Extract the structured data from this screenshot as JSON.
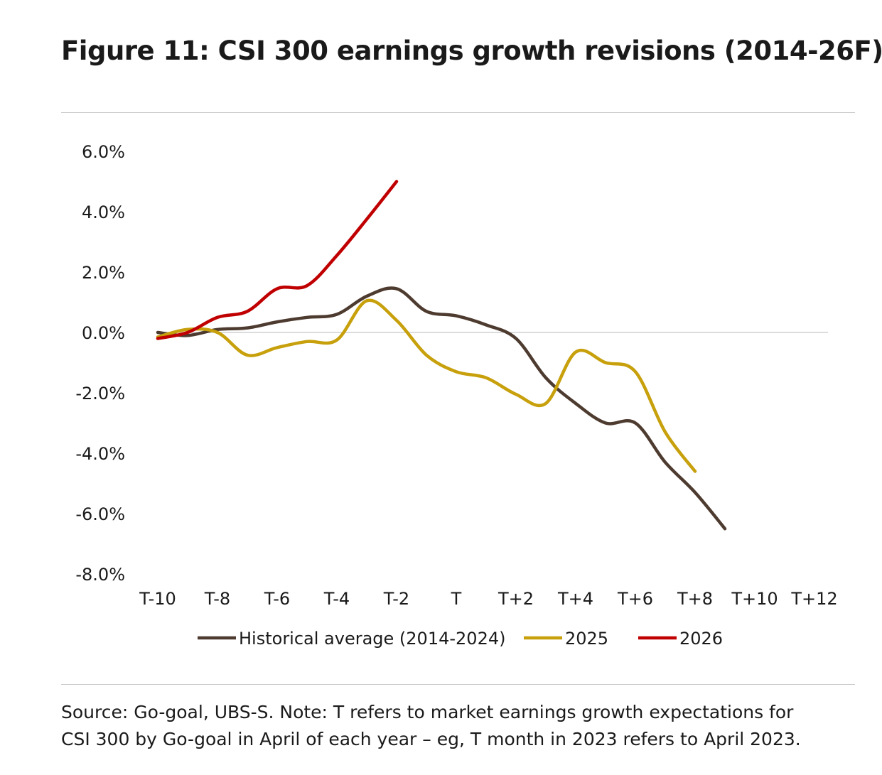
{
  "page": {
    "title": "Figure 11: CSI 300 earnings growth revisions (2014-26F)",
    "source_line1": "Source: Go-goal, UBS-S. Note: T refers to market earnings growth expectations for",
    "source_line2": "CSI 300 by Go-goal in April of each year – eg, T month in 2023 refers to April 2023."
  },
  "chart_data": {
    "type": "line",
    "title": "Figure 11: CSI 300 earnings growth revisions (2014-26F)",
    "xlabel": "",
    "ylabel": "",
    "x": [
      -10,
      -9,
      -8,
      -7,
      -6,
      -5,
      -4,
      -3,
      -2,
      -1,
      0,
      1,
      2,
      3,
      4,
      5,
      6,
      7,
      8,
      9,
      10,
      11,
      12
    ],
    "x_tick_labels": [
      "T-10",
      "T-8",
      "T-6",
      "T-4",
      "T-2",
      "T",
      "T+2",
      "T+4",
      "T+6",
      "T+8",
      "T+10",
      "T+12"
    ],
    "x_tick_values": [
      -10,
      -8,
      -6,
      -4,
      -2,
      0,
      2,
      4,
      6,
      8,
      10,
      12
    ],
    "ylim": [
      -8,
      6
    ],
    "y_ticks": [
      6,
      4,
      2,
      0,
      -2,
      -4,
      -6,
      -8
    ],
    "y_tick_labels": [
      "6.0%",
      "4.0%",
      "2.0%",
      "0.0%",
      "-2.0%",
      "-4.0%",
      "-6.0%",
      "-8.0%"
    ],
    "grid": false,
    "zero_line": true,
    "legend_position": "bottom",
    "series": [
      {
        "name": "Historical average (2014-2024)",
        "color": "#4e3b30",
        "values": [
          0.0,
          -0.1,
          0.1,
          0.15,
          0.35,
          0.5,
          0.6,
          1.2,
          1.45,
          0.7,
          0.55,
          0.25,
          -0.2,
          -1.5,
          -2.35,
          -3.0,
          -3.0,
          -4.3,
          -5.3,
          -6.5,
          null,
          null,
          null
        ]
      },
      {
        "name": "2025",
        "color": "#c7a00c",
        "values": [
          -0.15,
          0.1,
          0.0,
          -0.75,
          -0.5,
          -0.3,
          -0.25,
          1.05,
          0.4,
          -0.75,
          -1.3,
          -1.5,
          -2.05,
          -2.35,
          -0.65,
          -1.0,
          -1.3,
          -3.3,
          -4.6,
          null,
          null,
          null,
          null
        ]
      },
      {
        "name": "2026",
        "color": "#c00000",
        "values": [
          -0.2,
          0.0,
          0.5,
          0.7,
          1.45,
          1.55,
          2.55,
          3.75,
          5.0,
          null,
          null,
          null,
          null,
          null,
          null,
          null,
          null,
          null,
          null,
          null,
          null,
          null,
          null
        ]
      }
    ]
  }
}
